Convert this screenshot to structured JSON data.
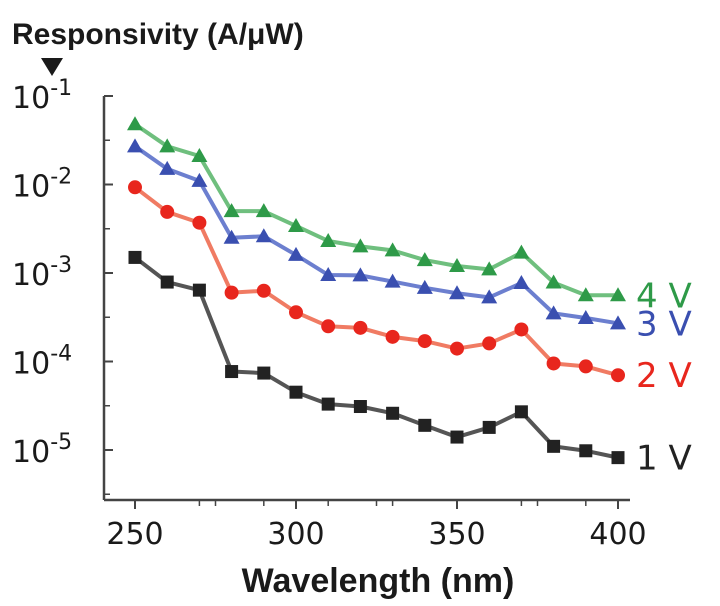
{
  "chart_data": {
    "type": "line",
    "title": "",
    "ylabel": "Responsivity (A/μW)",
    "xlabel": "Wavelength (nm)",
    "x": [
      250,
      260,
      270,
      280,
      290,
      300,
      310,
      320,
      330,
      340,
      350,
      360,
      370,
      380,
      390,
      400
    ],
    "xlim": [
      240,
      405
    ],
    "ylim_log10": [
      -5.6,
      -1
    ],
    "yscale": "log",
    "grid": false,
    "legend": "inline labels at right end of each series",
    "x_ticks": [
      {
        "value": 250,
        "label": "250"
      },
      {
        "value": 300,
        "label": "300"
      },
      {
        "value": 350,
        "label": "350"
      },
      {
        "value": 400,
        "label": "400"
      }
    ],
    "y_ticks": [
      {
        "exp": -1,
        "base": "10",
        "power": "-1"
      },
      {
        "exp": -2,
        "base": "10",
        "power": "-2"
      },
      {
        "exp": -3,
        "base": "10",
        "power": "-3"
      },
      {
        "exp": -4,
        "base": "10",
        "power": "-4"
      },
      {
        "exp": -5,
        "base": "10",
        "power": "-5"
      }
    ],
    "series": [
      {
        "name": "4 V",
        "label": "4 V",
        "color": "#2e9a48",
        "line_color": "#6fbf7e",
        "marker": "triangle",
        "values": [
          0.048,
          0.027,
          0.021,
          0.005,
          0.005,
          0.0034,
          0.0023,
          0.002,
          0.0018,
          0.0014,
          0.0012,
          0.0011,
          0.0017,
          0.00078,
          0.00056,
          0.00056
        ]
      },
      {
        "name": "3 V",
        "label": "3 V",
        "color": "#3a4fb0",
        "line_color": "#6c7fcf",
        "marker": "triangle",
        "values": [
          0.027,
          0.015,
          0.011,
          0.0025,
          0.0026,
          0.0016,
          0.00095,
          0.00094,
          0.0008,
          0.00068,
          0.00059,
          0.00053,
          0.00077,
          0.00035,
          0.00031,
          0.00027
        ]
      },
      {
        "name": "2 V",
        "label": "2 V",
        "color": "#e8261d",
        "line_color": "#f07b63",
        "marker": "circle",
        "values": [
          0.0093,
          0.0049,
          0.0037,
          0.0006,
          0.00063,
          0.00036,
          0.00025,
          0.00024,
          0.00019,
          0.00017,
          0.00014,
          0.00016,
          0.00023,
          9.5e-05,
          8.8e-05,
          7e-05
        ]
      },
      {
        "name": "1 V",
        "label": "1 V",
        "color": "#222222",
        "line_color": "#555555",
        "marker": "square",
        "values": [
          0.0015,
          0.00079,
          0.00064,
          7.7e-05,
          7.4e-05,
          4.5e-05,
          3.3e-05,
          3.1e-05,
          2.6e-05,
          1.9e-05,
          1.4e-05,
          1.8e-05,
          2.7e-05,
          1.1e-05,
          9.8e-06,
          8.2e-06
        ]
      }
    ]
  }
}
